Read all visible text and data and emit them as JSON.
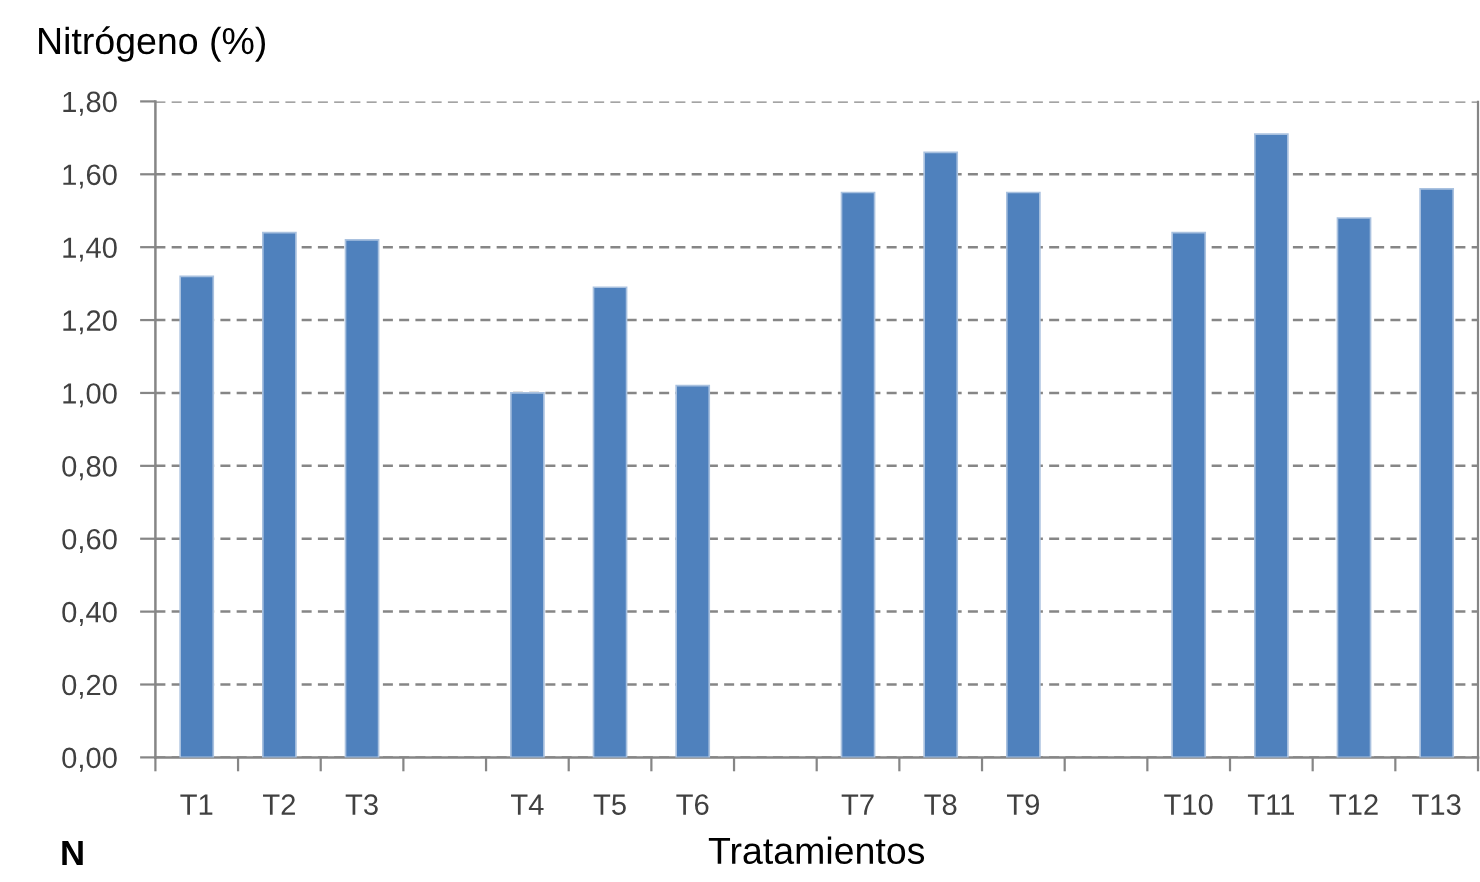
{
  "chart_data": {
    "type": "bar",
    "ylabel": "Nitrógeno (%)",
    "xlabel": "Tratamientos",
    "annotations": [
      "N"
    ],
    "categories": [
      "T1",
      "T2",
      "T3",
      null,
      "T4",
      "T5",
      "T6",
      null,
      "T7",
      "T8",
      "T9",
      null,
      "T10",
      "T11",
      "T12",
      "T13"
    ],
    "values": [
      1.32,
      1.44,
      1.42,
      null,
      1.0,
      1.29,
      1.02,
      null,
      1.55,
      1.66,
      1.55,
      null,
      1.44,
      1.71,
      1.48,
      1.56
    ],
    "color": "#4f81bd",
    "ylim": [
      0,
      1.8
    ],
    "yticks": [
      {
        "value": 0,
        "label": "0,00"
      },
      {
        "value": 0.2,
        "label": "0,20"
      },
      {
        "value": 0.4,
        "label": "0,40"
      },
      {
        "value": 0.6,
        "label": "0,60"
      },
      {
        "value": 0.8,
        "label": "0,80"
      },
      {
        "value": 1.0,
        "label": "1,00"
      },
      {
        "value": 1.2,
        "label": "1,20"
      },
      {
        "value": 1.4,
        "label": "1,40"
      },
      {
        "value": 1.6,
        "label": "1,60"
      },
      {
        "value": 1.8,
        "label": "1,80"
      }
    ],
    "grid": "y"
  }
}
